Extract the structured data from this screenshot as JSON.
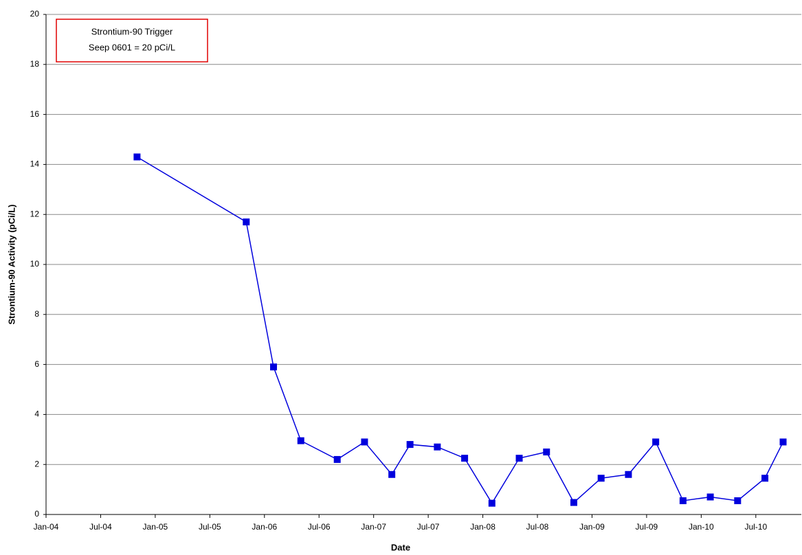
{
  "chart_data": {
    "type": "line",
    "annotation": [
      "Strontium-90 Trigger",
      "Seep 0601 = 20 pCi/L"
    ],
    "x_label": "Date",
    "y_label": "Strontium-90 Activity (pCi/L)",
    "x": [
      "2004-11",
      "2005-11",
      "2006-02",
      "2006-05",
      "2006-09",
      "2006-12",
      "2007-03",
      "2007-05",
      "2007-08",
      "2007-11",
      "2008-02",
      "2008-05",
      "2008-08",
      "2008-11",
      "2009-02",
      "2009-05",
      "2009-08",
      "2009-11",
      "2010-02",
      "2010-05",
      "2010-08",
      "2010-10"
    ],
    "series": [
      {
        "name": "Seep 0601",
        "color": "#0000dd",
        "values": [
          14.3,
          11.7,
          5.9,
          2.95,
          2.2,
          2.9,
          1.6,
          2.8,
          2.7,
          2.25,
          0.45,
          2.25,
          2.5,
          0.48,
          1.45,
          1.6,
          2.9,
          0.55,
          0.7,
          0.55,
          1.45,
          2.9
        ]
      }
    ],
    "xlim": [
      "2004-01",
      "2010-12"
    ],
    "xticks": [
      {
        "value": "2004-01",
        "label": "Jan-04"
      },
      {
        "value": "2004-07",
        "label": "Jul-04"
      },
      {
        "value": "2005-01",
        "label": "Jan-05"
      },
      {
        "value": "2005-07",
        "label": "Jul-05"
      },
      {
        "value": "2006-01",
        "label": "Jan-06"
      },
      {
        "value": "2006-07",
        "label": "Jul-06"
      },
      {
        "value": "2007-01",
        "label": "Jan-07"
      },
      {
        "value": "2007-07",
        "label": "Jul-07"
      },
      {
        "value": "2008-01",
        "label": "Jan-08"
      },
      {
        "value": "2008-07",
        "label": "Jul-08"
      },
      {
        "value": "2009-01",
        "label": "Jan-09"
      },
      {
        "value": "2009-07",
        "label": "Jul-09"
      },
      {
        "value": "2010-01",
        "label": "Jan-10"
      },
      {
        "value": "2010-07",
        "label": "Jul-10"
      }
    ],
    "ylim": [
      0,
      20
    ],
    "yticks": [
      0,
      2,
      4,
      6,
      8,
      10,
      12,
      14,
      16,
      18,
      20
    ],
    "grid": true
  }
}
